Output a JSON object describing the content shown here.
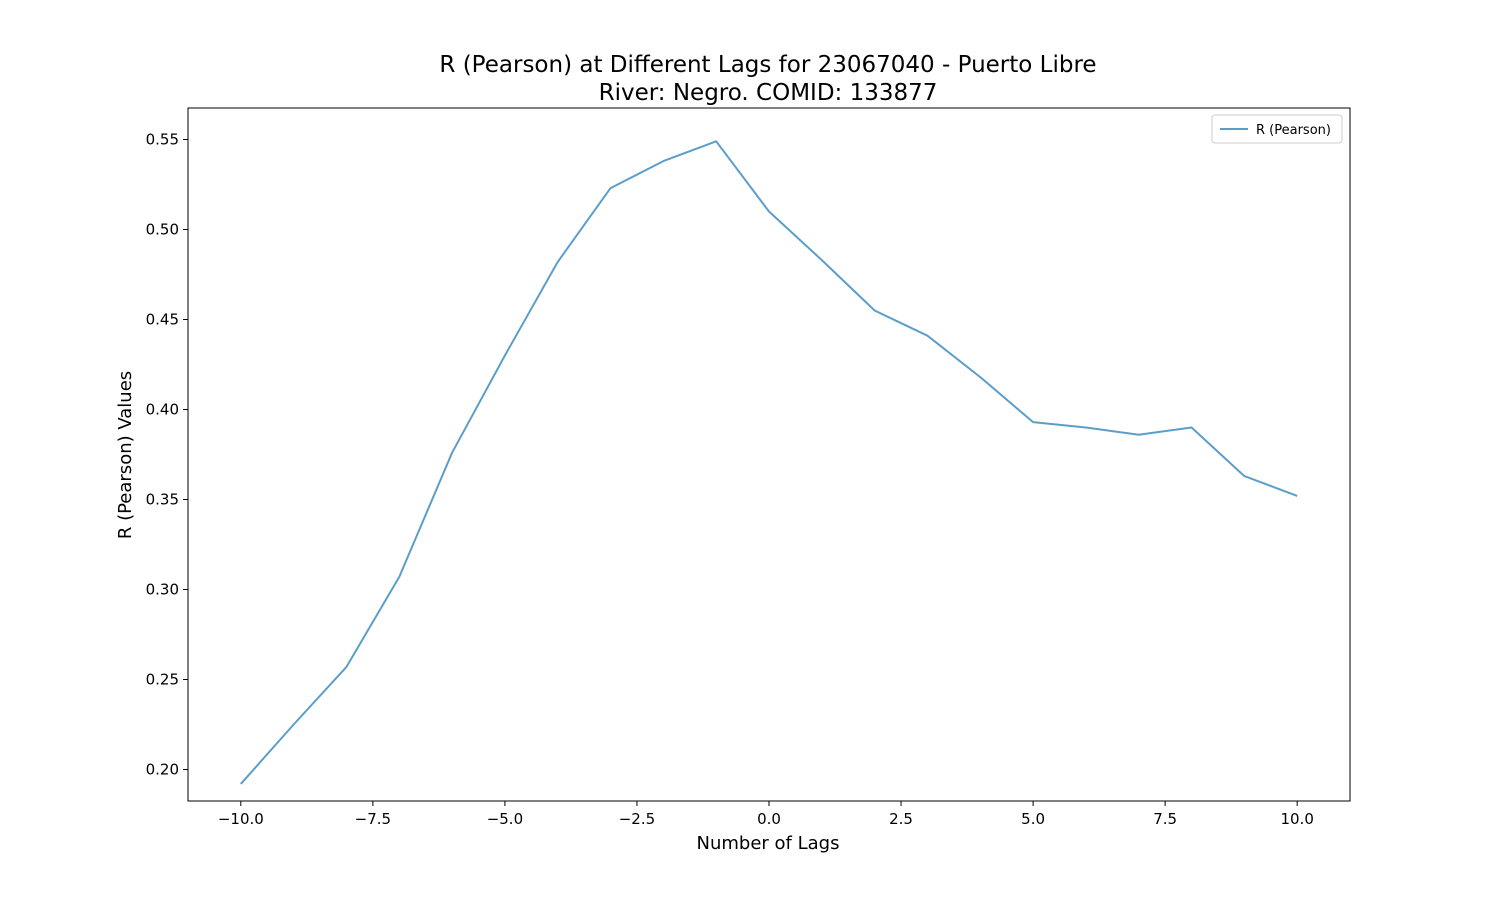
{
  "chart_data": {
    "type": "line",
    "title": "R (Pearson) at Different Lags for 23067040 - Puerto Libre",
    "subtitle": "River: Negro. COMID: 133877",
    "xlabel": "Number of Lags",
    "ylabel": "R (Pearson) Values",
    "xlim": [
      -11,
      11
    ],
    "ylim": [
      0.1825,
      0.5675
    ],
    "x_ticks": [
      -10.0,
      -7.5,
      -5.0,
      -2.5,
      0.0,
      2.5,
      5.0,
      7.5,
      10.0
    ],
    "x_tick_labels": [
      "−10.0",
      "−7.5",
      "−5.0",
      "−2.5",
      "0.0",
      "2.5",
      "5.0",
      "7.5",
      "10.0"
    ],
    "y_ticks": [
      0.2,
      0.25,
      0.3,
      0.35,
      0.4,
      0.45,
      0.5,
      0.55
    ],
    "y_tick_labels": [
      "0.20",
      "0.25",
      "0.30",
      "0.35",
      "0.40",
      "0.45",
      "0.50",
      "0.55"
    ],
    "grid": false,
    "legend_position": "top-right",
    "series": [
      {
        "name": "R (Pearson)",
        "color": "#5b9ec9",
        "x": [
          -10,
          -9,
          -8,
          -7,
          -6,
          -5,
          -4,
          -3,
          -2,
          -1,
          0,
          1,
          2,
          3,
          4,
          5,
          6,
          7,
          8,
          9,
          10
        ],
        "values": [
          0.192,
          0.225,
          0.257,
          0.307,
          0.376,
          0.43,
          0.482,
          0.523,
          0.538,
          0.549,
          0.51,
          0.483,
          0.455,
          0.441,
          0.418,
          0.393,
          0.39,
          0.386,
          0.39,
          0.363,
          0.352
        ]
      }
    ]
  }
}
